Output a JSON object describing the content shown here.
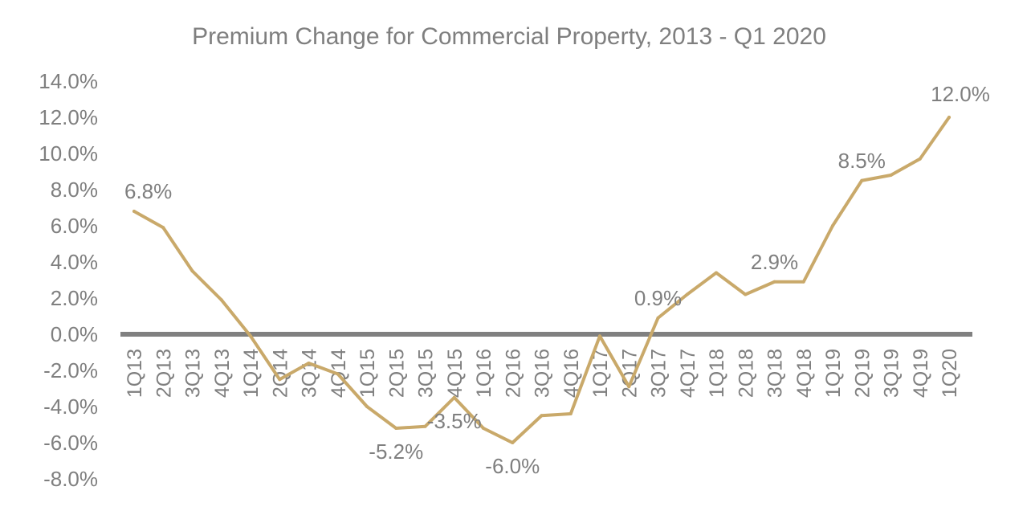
{
  "chart_data": {
    "type": "line",
    "title": "Premium Change for Commercial Property, 2013 - Q1 2020",
    "xlabel": "",
    "ylabel": "",
    "ylim": [
      -8,
      14
    ],
    "yticks": [
      "14.0%",
      "12.0%",
      "10.0%",
      "8.0%",
      "6.0%",
      "4.0%",
      "2.0%",
      "0.0%",
      "-2.0%",
      "-4.0%",
      "-6.0%",
      "-8.0%"
    ],
    "categories": [
      "1Q13",
      "2Q13",
      "3Q13",
      "4Q13",
      "1Q14",
      "2Q14",
      "3Q14",
      "4Q14",
      "1Q15",
      "2Q15",
      "3Q15",
      "4Q15",
      "1Q16",
      "2Q16",
      "3Q16",
      "4Q16",
      "1Q17",
      "2Q17",
      "3Q17",
      "4Q17",
      "1Q18",
      "2Q18",
      "3Q18",
      "4Q18",
      "1Q19",
      "2Q19",
      "3Q19",
      "4Q19",
      "1Q20"
    ],
    "series": [
      {
        "values": [
          6.8,
          5.9,
          3.5,
          1.9,
          -0.1,
          -2.5,
          -1.6,
          -2.2,
          -4.0,
          -5.2,
          -5.1,
          -3.5,
          -5.2,
          -6.0,
          -4.5,
          -4.4,
          -0.1,
          -2.9,
          0.9,
          2.2,
          3.4,
          2.2,
          2.9,
          2.9,
          6.0,
          8.5,
          8.8,
          9.7,
          12.0
        ]
      }
    ],
    "data_labels": [
      {
        "index": 0,
        "text": "6.8%"
      },
      {
        "index": 9,
        "text": "-5.2%"
      },
      {
        "index": 11,
        "text": "-3.5%"
      },
      {
        "index": 13,
        "text": "-6.0%"
      },
      {
        "index": 18,
        "text": "0.9%"
      },
      {
        "index": 22,
        "text": "2.9%"
      },
      {
        "index": 25,
        "text": "8.5%"
      },
      {
        "index": 28,
        "text": "12.0%"
      }
    ],
    "colors": {
      "line": "#c9a96a",
      "zero_axis": "#808080",
      "text": "#7f7f7f"
    },
    "grid": false,
    "legend": "none"
  }
}
